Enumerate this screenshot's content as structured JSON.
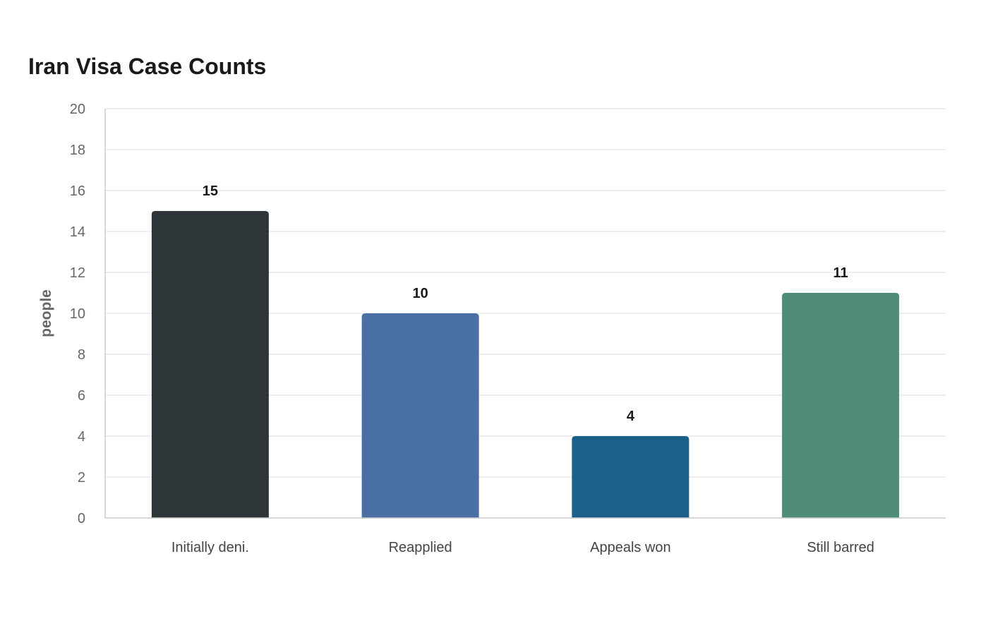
{
  "chart_data": {
    "type": "bar",
    "title": "Iran Visa Case Counts",
    "xlabel": "",
    "ylabel": "people",
    "categories": [
      "Initially deni.",
      "Reapplied",
      "Appeals won",
      "Still barred"
    ],
    "values": [
      15,
      10,
      4,
      11
    ],
    "colors": [
      "#2d3538",
      "#4a6fa3",
      "#1a6089",
      "#4f8c7a"
    ],
    "ylim": [
      0,
      20
    ],
    "yticks": [
      0,
      2,
      4,
      6,
      8,
      10,
      12,
      14,
      16,
      18,
      20
    ],
    "grid": true,
    "legend": "none"
  }
}
